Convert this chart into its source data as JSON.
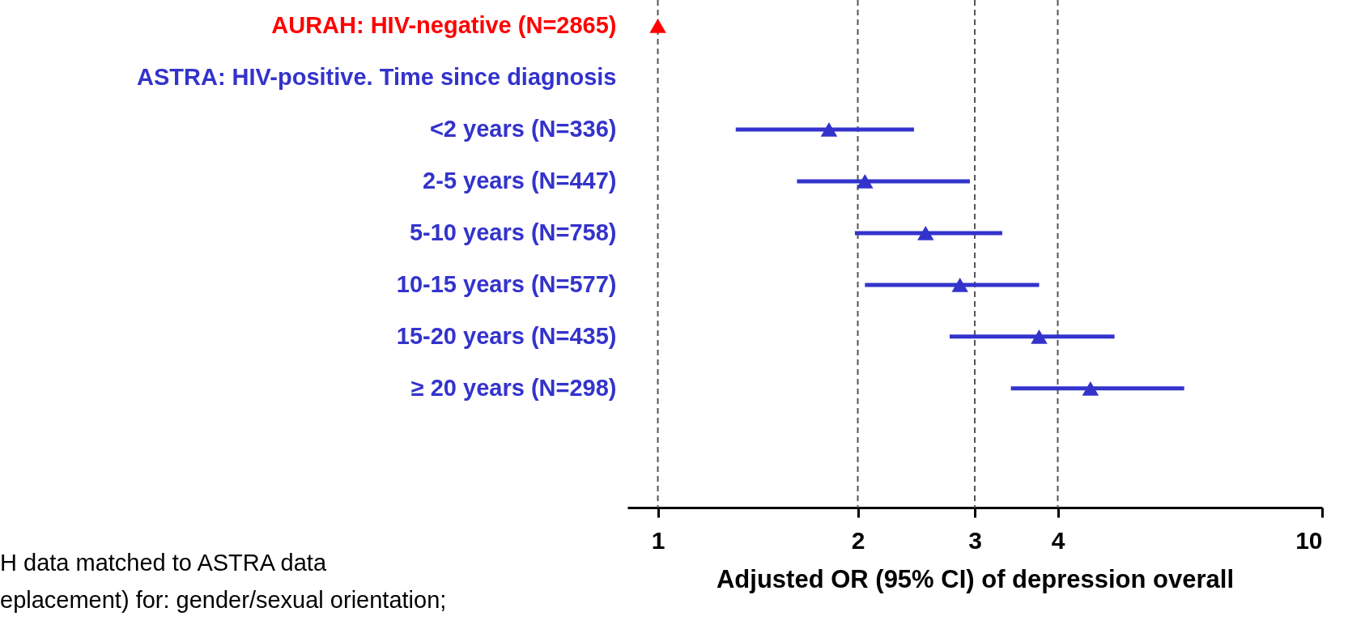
{
  "chart_data": {
    "type": "scatter",
    "orientation": "horizontal",
    "log": "x",
    "marker": "triangle",
    "categories": [
      "AURAH: HIV-negative (N=2865)",
      "ASTRA: HIV-positive. Time since diagnosis",
      "<2 years (N=336)",
      "2-5 years (N=447)",
      "5-10 years (N=758)",
      "10-15 years (N=577)",
      "15-20 years (N=435)",
      "≥ 20 years (N=298)"
    ],
    "series": [
      {
        "color": "#ff0000",
        "values": [
          1,
          null,
          null,
          null,
          null,
          null,
          null,
          null
        ]
      },
      {
        "color": "#3333cc",
        "values": [
          null,
          null,
          1.81,
          2.05,
          2.53,
          2.85,
          3.75,
          4.48
        ],
        "errors": [
          null,
          null,
          [
            1.31,
            2.43
          ],
          [
            1.62,
            2.95
          ],
          [
            1.98,
            3.3
          ],
          [
            2.05,
            3.75
          ],
          [
            2.75,
            4.87
          ],
          [
            3.4,
            6.2
          ]
        ]
      }
    ],
    "xlim": [
      0.9,
      10
    ],
    "xticks": [
      1,
      2,
      3,
      4,
      10
    ],
    "xlabel": "Adjusted OR (95% CI) of depression overall",
    "ref_lines": [
      {
        "axis": "x",
        "value": 1
      },
      {
        "axis": "x",
        "value": 2
      },
      {
        "axis": "x",
        "value": 3
      },
      {
        "axis": "x",
        "value": 4
      }
    ],
    "line_style": "dashed",
    "annotations": [
      "H data matched to ASTRA data",
      "eplacement) for: gender/sexual orientation;"
    ]
  }
}
